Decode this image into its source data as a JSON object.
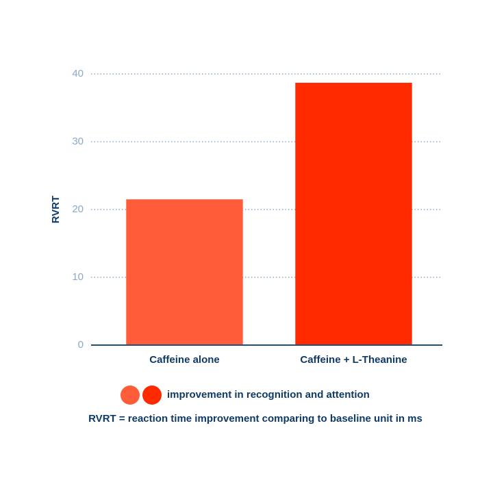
{
  "chart_data": {
    "type": "bar",
    "y_label": "RVRT",
    "categories": [
      "Caffeine alone",
      "Caffeine + L-Theanine"
    ],
    "values": [
      21.5,
      38.7
    ],
    "colors": [
      "#ff5c39",
      "#ff2a00"
    ],
    "ylim": [
      0,
      40
    ],
    "yticks": [
      0,
      10,
      20,
      30,
      40
    ],
    "grid": true,
    "legend": "improvement in recognition and attention",
    "note": "RVRT = reaction time improvement comparing to baseline unit in ms"
  }
}
